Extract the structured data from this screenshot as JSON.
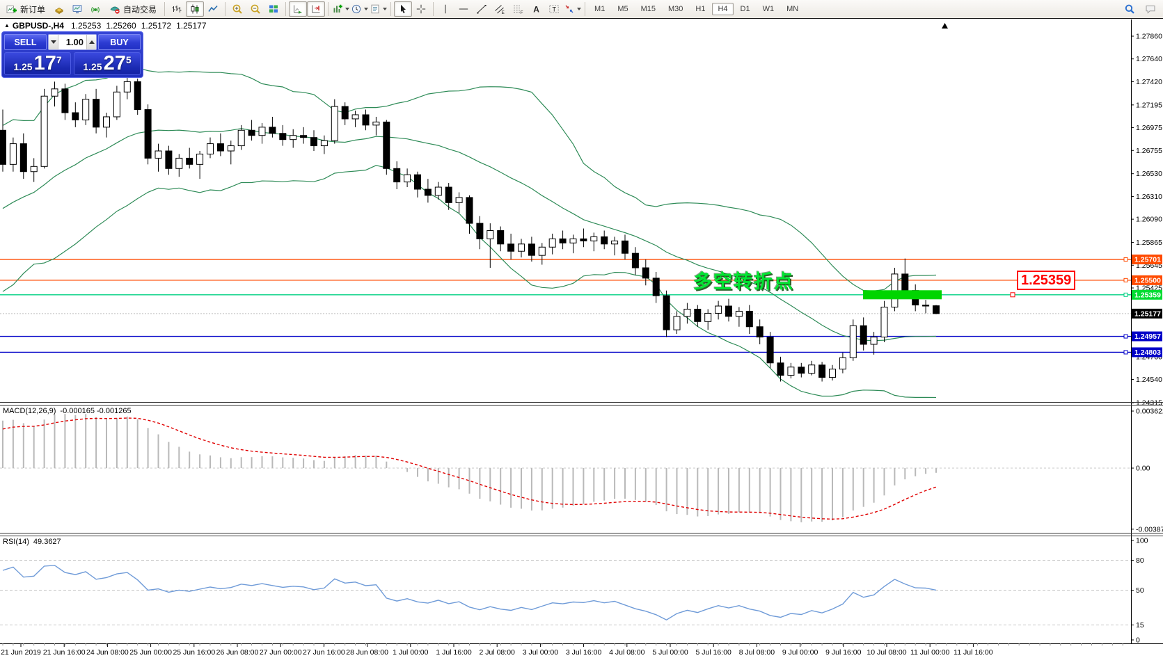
{
  "toolbar": {
    "groups": [
      {
        "name": "trade-group",
        "items": [
          {
            "name": "new-order-button",
            "icon": "new-order",
            "label": "新订单"
          },
          {
            "name": "market-watch-button",
            "icon": "gold-box"
          },
          {
            "name": "terminal-button",
            "icon": "terminal"
          },
          {
            "name": "signals-button",
            "icon": "signal"
          },
          {
            "name": "autotrading-button",
            "icon": "autotrade",
            "label": "自动交易"
          }
        ]
      },
      {
        "name": "chart-type-group",
        "items": [
          {
            "name": "bar-chart-button",
            "icon": "bars"
          },
          {
            "name": "candlestick-button",
            "icon": "candles",
            "pressed": true
          },
          {
            "name": "line-chart-button",
            "icon": "line"
          }
        ]
      },
      {
        "name": "zoom-group",
        "items": [
          {
            "name": "zoom-in-button",
            "icon": "zoom-in"
          },
          {
            "name": "zoom-out-button",
            "icon": "zoom-out"
          },
          {
            "name": "tile-windows-button",
            "icon": "tile"
          }
        ]
      },
      {
        "name": "scroll-group",
        "items": [
          {
            "name": "auto-scroll-button",
            "icon": "autoscroll",
            "pressed": true
          },
          {
            "name": "chart-shift-button",
            "icon": "chartshift",
            "pressed": true
          }
        ]
      },
      {
        "name": "objects-group",
        "items": [
          {
            "name": "indicators-button",
            "icon": "indicators",
            "dropdown": true
          },
          {
            "name": "periods-button",
            "icon": "clock",
            "dropdown": true
          },
          {
            "name": "templates-button",
            "icon": "template",
            "dropdown": true
          }
        ]
      },
      {
        "name": "cursor-group",
        "items": [
          {
            "name": "cursor-button",
            "icon": "cursor",
            "pressed": true
          },
          {
            "name": "crosshair-button",
            "icon": "crosshair"
          }
        ]
      },
      {
        "name": "draw-group",
        "items": [
          {
            "name": "vertical-line-button",
            "icon": "vline"
          },
          {
            "name": "horizontal-line-button",
            "icon": "hline"
          },
          {
            "name": "trendline-button",
            "icon": "tline"
          },
          {
            "name": "equidistant-channel-button",
            "icon": "channel"
          },
          {
            "name": "fibonacci-button",
            "icon": "fibo"
          },
          {
            "name": "text-button",
            "icon": "textA"
          },
          {
            "name": "text-label-button",
            "icon": "textT"
          },
          {
            "name": "arrows-button",
            "icon": "arrows",
            "dropdown": true
          }
        ]
      }
    ],
    "timeframes": [
      "M1",
      "M5",
      "M15",
      "M30",
      "H1",
      "H4",
      "D1",
      "W1",
      "MN"
    ],
    "active_timeframe": "H4",
    "right_items": [
      {
        "name": "search-button",
        "icon": "search"
      },
      {
        "name": "chat-button",
        "icon": "chat"
      }
    ]
  },
  "trade_panel": {
    "symbol_line": "GBPUSD-,H4",
    "sell_label": "SELL",
    "buy_label": "BUY",
    "volume": "1.00",
    "sell_price": {
      "prefix": "1.25",
      "big": "17",
      "sup": "7"
    },
    "buy_price": {
      "prefix": "1.25",
      "big": "27",
      "sup": "5"
    }
  },
  "chart_data": {
    "type": "candlestick",
    "symbol": "GBPUSD-",
    "timeframe": "H4",
    "quote": {
      "open": "1.25253",
      "high": "1.25260",
      "low": "1.25172",
      "close": "1.25177"
    },
    "price_axis": {
      "range": [
        1.24315,
        1.2786
      ],
      "ticks": [
        "1.27860",
        "1.27640",
        "1.27420",
        "1.27195",
        "1.26975",
        "1.26755",
        "1.26530",
        "1.26310",
        "1.26090",
        "1.25865",
        "1.25645",
        "1.25425",
        "1.24760",
        "1.24540",
        "1.24315"
      ]
    },
    "hlines": [
      {
        "label": "1.25701",
        "price": 1.25701,
        "color": "#FF4A00",
        "badge_color": "#FF4A00",
        "type": "level"
      },
      {
        "label": "1.25500",
        "price": 1.255,
        "color": "#FF4A00",
        "badge_color": "#FF4A00",
        "type": "level"
      },
      {
        "label": "1.25359",
        "price": 1.25359,
        "color": "#00D083",
        "badge_color": "#00DC32",
        "type": "level"
      },
      {
        "label": "1.25177",
        "price": 1.25177,
        "color": "#BDBDBD",
        "badge_color": "#000000",
        "type": "current"
      },
      {
        "label": "1.24957",
        "price": 1.24957,
        "color": "#0000C8",
        "badge_color": "#0000C8",
        "type": "level"
      },
      {
        "label": "1.24803",
        "price": 1.24803,
        "color": "#0000C8",
        "badge_color": "#0000C8",
        "type": "level"
      }
    ],
    "bollinger": {
      "period": 20,
      "deviation": 2,
      "color": "#2E8B57"
    },
    "warmup_closes": [
      1.255,
      1.256,
      1.2555,
      1.257,
      1.258,
      1.2575,
      1.259,
      1.26,
      1.2595,
      1.261,
      1.262,
      1.2615,
      1.263,
      1.264,
      1.2635,
      1.265,
      1.2665,
      1.266,
      1.268,
      1.2695
    ],
    "candles": [
      [
        1.2695,
        1.2715,
        1.2655,
        1.2662
      ],
      [
        1.2662,
        1.2688,
        1.2655,
        1.2682
      ],
      [
        1.2682,
        1.2692,
        1.2648,
        1.2655
      ],
      [
        1.2655,
        1.2668,
        1.2645,
        1.266
      ],
      [
        1.266,
        1.2735,
        1.2658,
        1.2728
      ],
      [
        1.2728,
        1.2742,
        1.2718,
        1.2735
      ],
      [
        1.2735,
        1.274,
        1.2705,
        1.2712
      ],
      [
        1.2712,
        1.2722,
        1.2698,
        1.2705
      ],
      [
        1.2705,
        1.273,
        1.27,
        1.2725
      ],
      [
        1.2725,
        1.2735,
        1.2692,
        1.2698
      ],
      [
        1.2698,
        1.2712,
        1.2688,
        1.2708
      ],
      [
        1.2708,
        1.2738,
        1.2705,
        1.2732
      ],
      [
        1.2732,
        1.2747,
        1.2725,
        1.2742
      ],
      [
        1.2742,
        1.2745,
        1.271,
        1.2715
      ],
      [
        1.2715,
        1.272,
        1.2662,
        1.2668
      ],
      [
        1.2668,
        1.2682,
        1.2655,
        1.2675
      ],
      [
        1.2675,
        1.268,
        1.2652,
        1.2658
      ],
      [
        1.2658,
        1.2672,
        1.265,
        1.2668
      ],
      [
        1.2668,
        1.2678,
        1.2658,
        1.2662
      ],
      [
        1.2662,
        1.2675,
        1.2648,
        1.2672
      ],
      [
        1.2672,
        1.2688,
        1.2668,
        1.2682
      ],
      [
        1.2682,
        1.2692,
        1.267,
        1.2675
      ],
      [
        1.2675,
        1.2685,
        1.2662,
        1.268
      ],
      [
        1.268,
        1.27,
        1.2676,
        1.2695
      ],
      [
        1.2695,
        1.2705,
        1.2685,
        1.269
      ],
      [
        1.269,
        1.2702,
        1.2682,
        1.2698
      ],
      [
        1.2698,
        1.2708,
        1.2688,
        1.2692
      ],
      [
        1.2692,
        1.27,
        1.268,
        1.2686
      ],
      [
        1.2686,
        1.2696,
        1.2678,
        1.269
      ],
      [
        1.269,
        1.2698,
        1.2682,
        1.2688
      ],
      [
        1.2688,
        1.2695,
        1.2675,
        1.268
      ],
      [
        1.268,
        1.269,
        1.2672,
        1.2685
      ],
      [
        1.2685,
        1.2725,
        1.2682,
        1.2718
      ],
      [
        1.2718,
        1.2722,
        1.27,
        1.2706
      ],
      [
        1.2706,
        1.2714,
        1.2698,
        1.271
      ],
      [
        1.271,
        1.2715,
        1.2695,
        1.27
      ],
      [
        1.27,
        1.2708,
        1.269,
        1.2703
      ],
      [
        1.2703,
        1.2705,
        1.2652,
        1.2658
      ],
      [
        1.2658,
        1.2665,
        1.2638,
        1.2645
      ],
      [
        1.2645,
        1.2658,
        1.264,
        1.2652
      ],
      [
        1.2652,
        1.2655,
        1.263,
        1.2638
      ],
      [
        1.2638,
        1.2648,
        1.2625,
        1.2632
      ],
      [
        1.2632,
        1.2645,
        1.2628,
        1.264
      ],
      [
        1.264,
        1.2644,
        1.2618,
        1.2625
      ],
      [
        1.2625,
        1.2635,
        1.2615,
        1.263
      ],
      [
        1.263,
        1.2632,
        1.2595,
        1.2605
      ],
      [
        1.2605,
        1.2612,
        1.258,
        1.259
      ],
      [
        1.259,
        1.2605,
        1.2562,
        1.2598
      ],
      [
        1.2598,
        1.2602,
        1.2578,
        1.2585
      ],
      [
        1.2585,
        1.2595,
        1.257,
        1.2578
      ],
      [
        1.2578,
        1.259,
        1.2572,
        1.2585
      ],
      [
        1.2585,
        1.2592,
        1.2568,
        1.2574
      ],
      [
        1.2574,
        1.2586,
        1.2565,
        1.2582
      ],
      [
        1.2582,
        1.2595,
        1.2575,
        1.259
      ],
      [
        1.259,
        1.2598,
        1.258,
        1.2586
      ],
      [
        1.2586,
        1.2594,
        1.2576,
        1.259
      ],
      [
        1.259,
        1.26,
        1.2582,
        1.2588
      ],
      [
        1.2588,
        1.2596,
        1.2578,
        1.2592
      ],
      [
        1.2592,
        1.2598,
        1.258,
        1.2585
      ],
      [
        1.2585,
        1.2592,
        1.2574,
        1.2588
      ],
      [
        1.2588,
        1.2594,
        1.257,
        1.2576
      ],
      [
        1.2576,
        1.2582,
        1.2555,
        1.2562
      ],
      [
        1.2562,
        1.257,
        1.2545,
        1.2552
      ],
      [
        1.2552,
        1.2558,
        1.2528,
        1.2535
      ],
      [
        1.2535,
        1.254,
        1.2495,
        1.2502
      ],
      [
        1.2502,
        1.252,
        1.2498,
        1.2515
      ],
      [
        1.2515,
        1.2528,
        1.2508,
        1.2522
      ],
      [
        1.2522,
        1.2526,
        1.2505,
        1.251
      ],
      [
        1.251,
        1.2522,
        1.2502,
        1.2518
      ],
      [
        1.2518,
        1.253,
        1.2512,
        1.2525
      ],
      [
        1.2525,
        1.2532,
        1.251,
        1.2515
      ],
      [
        1.2515,
        1.2524,
        1.2505,
        1.252
      ],
      [
        1.252,
        1.2526,
        1.2498,
        1.2505
      ],
      [
        1.2505,
        1.2512,
        1.2488,
        1.2495
      ],
      [
        1.2495,
        1.25,
        1.2465,
        1.247
      ],
      [
        1.247,
        1.2476,
        1.2452,
        1.2458
      ],
      [
        1.2458,
        1.247,
        1.2455,
        1.2466
      ],
      [
        1.2466,
        1.247,
        1.2456,
        1.246
      ],
      [
        1.246,
        1.2472,
        1.2458,
        1.2468
      ],
      [
        1.2468,
        1.2471,
        1.2452,
        1.2456
      ],
      [
        1.2456,
        1.2468,
        1.2453,
        1.2464
      ],
      [
        1.2464,
        1.248,
        1.246,
        1.2475
      ],
      [
        1.2475,
        1.2512,
        1.2472,
        1.2506
      ],
      [
        1.2506,
        1.2514,
        1.2482,
        1.2488
      ],
      [
        1.2488,
        1.25,
        1.2478,
        1.2495
      ],
      [
        1.2495,
        1.253,
        1.249,
        1.2524
      ],
      [
        1.2524,
        1.2562,
        1.252,
        1.2556
      ],
      [
        1.2556,
        1.2571,
        1.2536,
        1.254
      ],
      [
        1.254,
        1.2546,
        1.252,
        1.2526
      ],
      [
        1.2526,
        1.2531,
        1.2518,
        1.2525
      ],
      [
        1.25253,
        1.2526,
        1.25172,
        1.25177
      ]
    ],
    "highlight_bar": {
      "price": 1.25359,
      "color": "#00D500"
    },
    "annotation": {
      "text": "多空转折点",
      "color": "#00E632"
    },
    "callout": {
      "text": "1.25359",
      "color": "#FF0000"
    },
    "macd": {
      "title": "MACD(12,26,9)",
      "values": "-0.000165 -0.001265",
      "axis": [
        "0.003622",
        "0.00",
        "-0.003877"
      ],
      "histogram_color": "#B9B9B9",
      "signal_color": "#E00000"
    },
    "rsi": {
      "title": "RSI(14)",
      "value": "49.3627",
      "axis": [
        "100",
        "80",
        "50",
        "15",
        "0"
      ],
      "levels": [
        80,
        50,
        15
      ],
      "color": "#6F9BD8"
    },
    "time_axis": [
      "21 Jun 2019",
      "21 Jun 16:00",
      "24 Jun 08:00",
      "25 Jun 00:00",
      "25 Jun 16:00",
      "26 Jun 08:00",
      "27 Jun 00:00",
      "27 Jun 16:00",
      "28 Jun 08:00",
      "1 Jul 00:00",
      "1 Jul 16:00",
      "2 Jul 08:00",
      "3 Jul 00:00",
      "3 Jul 16:00",
      "4 Jul 08:00",
      "5 Jul 00:00",
      "5 Jul 16:00",
      "8 Jul 08:00",
      "9 Jul 00:00",
      "9 Jul 16:00",
      "10 Jul 08:00",
      "11 Jul 00:00",
      "11 Jul 16:00"
    ]
  }
}
